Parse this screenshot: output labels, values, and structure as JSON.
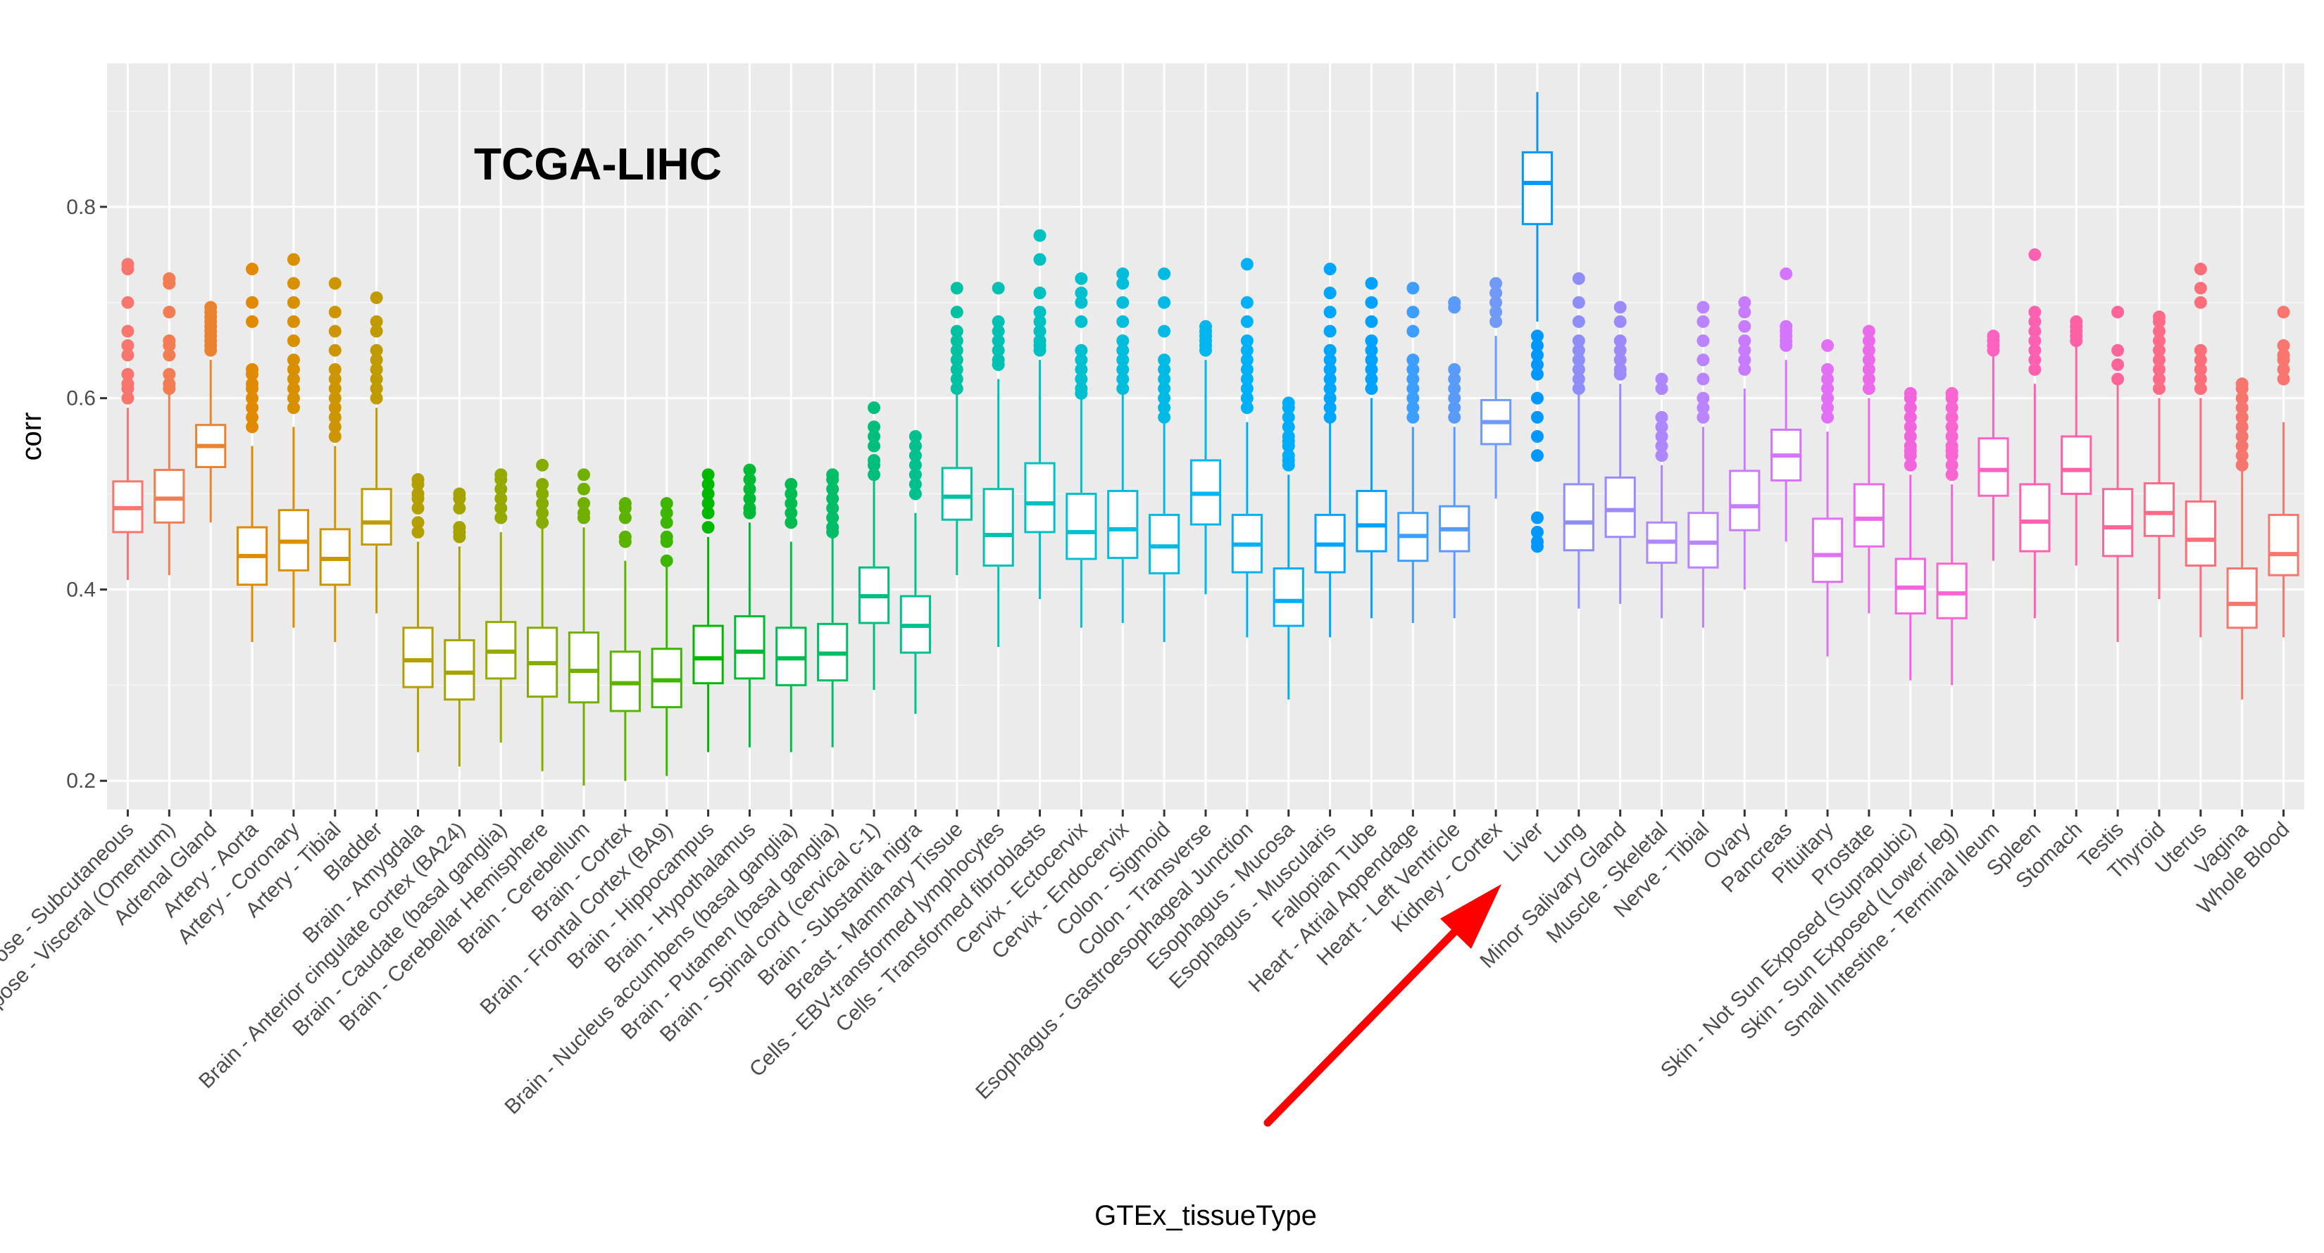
{
  "chart_data": {
    "type": "boxplot",
    "title": "TCGA-LIHC",
    "xlabel": "GTEx_tissueType",
    "ylabel": "corr",
    "ylim": [
      0.17,
      0.95
    ],
    "yticks": [
      0.2,
      0.4,
      0.6,
      0.8
    ],
    "ytick_labels": [
      "0.2",
      "0.4",
      "0.6",
      "0.8"
    ],
    "grid": true,
    "legend": "none",
    "annotation": {
      "type": "arrow",
      "points_to": "Liver",
      "color": "#ff0000"
    },
    "categories": [
      "Adipose - Subcutaneous",
      "Adipose - Visceral (Omentum)",
      "Adrenal Gland",
      "Artery - Aorta",
      "Artery - Coronary",
      "Artery - Tibial",
      "Bladder",
      "Brain - Amygdala",
      "Brain - Anterior cingulate cortex (BA24)",
      "Brain - Caudate (basal ganglia)",
      "Brain - Cerebellar Hemisphere",
      "Brain - Cerebellum",
      "Brain - Cortex",
      "Brain - Frontal Cortex (BA9)",
      "Brain - Hippocampus",
      "Brain - Hypothalamus",
      "Brain - Nucleus accumbens (basal ganglia)",
      "Brain - Putamen (basal ganglia)",
      "Brain - Spinal cord (cervical c-1)",
      "Brain - Substantia nigra",
      "Breast - Mammary Tissue",
      "Cells - EBV-transformed lymphocytes",
      "Cells - Transformed fibroblasts",
      "Cervix - Ectocervix",
      "Cervix - Endocervix",
      "Colon - Sigmoid",
      "Colon - Transverse",
      "Esophagus - Gastroesophageal Junction",
      "Esophagus - Mucosa",
      "Esophagus - Muscularis",
      "Fallopian Tube",
      "Heart - Atrial Appendage",
      "Heart - Left Ventricle",
      "Kidney - Cortex",
      "Liver",
      "Lung",
      "Minor Salivary Gland",
      "Muscle - Skeletal",
      "Nerve - Tibial",
      "Ovary",
      "Pancreas",
      "Pituitary",
      "Prostate",
      "Skin - Not Sun Exposed (Suprapubic)",
      "Skin - Sun Exposed (Lower leg)",
      "Small Intestine - Terminal Ileum",
      "Spleen",
      "Stomach",
      "Testis",
      "Thyroid",
      "Uterus",
      "Vagina",
      "Whole Blood"
    ],
    "colors": [
      "#f8766d",
      "#f27d53",
      "#ea8331",
      "#e18a00",
      "#d89000",
      "#cd9600",
      "#c09b00",
      "#b49f00",
      "#a5a300",
      "#96a900",
      "#86ac00",
      "#72b000",
      "#5bb300",
      "#3cb600",
      "#00b900",
      "#00ba35",
      "#00bc50",
      "#00be67",
      "#00bf7c",
      "#00c08f",
      "#00c1a1",
      "#00c1b2",
      "#00c0c1",
      "#00bfcf",
      "#00bddb",
      "#00bae6",
      "#00b6ef",
      "#00b1f7",
      "#00adfa",
      "#00a5ff",
      "#00a1ff",
      "#3c9ffd",
      "#5a9bf9",
      "#709af6",
      "#0098ff",
      "#8d8ef7",
      "#9e89f9",
      "#ae87ff",
      "#bb83ff",
      "#c77cff",
      "#d575fe",
      "#e170f4",
      "#ea6ae9",
      "#f263de",
      "#f966d1",
      "#fc63c1",
      "#ff61b1",
      "#ff61a4",
      "#ff6596",
      "#ff6b86",
      "#fc6e79",
      "#f6756d",
      "#f8766d"
    ],
    "series": [
      {
        "min": 0.41,
        "q1": 0.46,
        "median": 0.485,
        "q3": 0.513,
        "max": 0.59,
        "outliers": [
          0.74,
          0.735,
          0.7,
          0.67,
          0.655,
          0.645,
          0.625,
          0.615,
          0.61,
          0.6
        ]
      },
      {
        "min": 0.415,
        "q1": 0.47,
        "median": 0.495,
        "q3": 0.525,
        "max": 0.605,
        "outliers": [
          0.725,
          0.72,
          0.69,
          0.66,
          0.655,
          0.645,
          0.625,
          0.615,
          0.61
        ]
      },
      {
        "min": 0.47,
        "q1": 0.528,
        "median": 0.55,
        "q3": 0.572,
        "max": 0.64,
        "outliers": [
          0.695,
          0.69,
          0.685,
          0.68,
          0.675,
          0.67,
          0.665,
          0.66,
          0.655,
          0.65
        ]
      },
      {
        "min": 0.345,
        "q1": 0.405,
        "median": 0.435,
        "q3": 0.465,
        "max": 0.55,
        "outliers": [
          0.735,
          0.7,
          0.68,
          0.63,
          0.625,
          0.615,
          0.61,
          0.6,
          0.59,
          0.58,
          0.57
        ]
      },
      {
        "min": 0.36,
        "q1": 0.42,
        "median": 0.45,
        "q3": 0.483,
        "max": 0.57,
        "outliers": [
          0.745,
          0.72,
          0.7,
          0.68,
          0.66,
          0.64,
          0.63,
          0.62,
          0.61,
          0.6,
          0.59
        ]
      },
      {
        "min": 0.345,
        "q1": 0.405,
        "median": 0.432,
        "q3": 0.463,
        "max": 0.55,
        "outliers": [
          0.72,
          0.69,
          0.67,
          0.65,
          0.63,
          0.62,
          0.61,
          0.6,
          0.59,
          0.58,
          0.57,
          0.56
        ]
      },
      {
        "min": 0.375,
        "q1": 0.447,
        "median": 0.47,
        "q3": 0.505,
        "max": 0.59,
        "outliers": [
          0.705,
          0.68,
          0.67,
          0.65,
          0.64,
          0.63,
          0.62,
          0.61,
          0.6
        ]
      },
      {
        "min": 0.23,
        "q1": 0.298,
        "median": 0.326,
        "q3": 0.36,
        "max": 0.45,
        "outliers": [
          0.515,
          0.51,
          0.5,
          0.495,
          0.485,
          0.47,
          0.46
        ]
      },
      {
        "min": 0.215,
        "q1": 0.285,
        "median": 0.313,
        "q3": 0.347,
        "max": 0.445,
        "outliers": [
          0.5,
          0.495,
          0.485,
          0.465,
          0.46,
          0.455
        ]
      },
      {
        "min": 0.24,
        "q1": 0.307,
        "median": 0.335,
        "q3": 0.366,
        "max": 0.46,
        "outliers": [
          0.52,
          0.515,
          0.505,
          0.495,
          0.485,
          0.475
        ]
      },
      {
        "min": 0.21,
        "q1": 0.288,
        "median": 0.323,
        "q3": 0.36,
        "max": 0.465,
        "outliers": [
          0.53,
          0.51,
          0.5,
          0.49,
          0.48,
          0.47
        ]
      },
      {
        "min": 0.195,
        "q1": 0.282,
        "median": 0.315,
        "q3": 0.355,
        "max": 0.465,
        "outliers": [
          0.52,
          0.505,
          0.49,
          0.48,
          0.475
        ]
      },
      {
        "min": 0.2,
        "q1": 0.273,
        "median": 0.302,
        "q3": 0.335,
        "max": 0.43,
        "outliers": [
          0.49,
          0.485,
          0.475,
          0.455,
          0.45
        ]
      },
      {
        "min": 0.205,
        "q1": 0.277,
        "median": 0.305,
        "q3": 0.338,
        "max": 0.435,
        "outliers": [
          0.49,
          0.48,
          0.47,
          0.455,
          0.45,
          0.43
        ]
      },
      {
        "min": 0.23,
        "q1": 0.302,
        "median": 0.328,
        "q3": 0.362,
        "max": 0.455,
        "outliers": [
          0.52,
          0.51,
          0.5,
          0.49,
          0.48,
          0.465
        ]
      },
      {
        "min": 0.235,
        "q1": 0.307,
        "median": 0.335,
        "q3": 0.372,
        "max": 0.47,
        "outliers": [
          0.525,
          0.515,
          0.505,
          0.495,
          0.485,
          0.48
        ]
      },
      {
        "min": 0.23,
        "q1": 0.3,
        "median": 0.328,
        "q3": 0.36,
        "max": 0.45,
        "outliers": [
          0.51,
          0.5,
          0.49,
          0.48,
          0.47
        ]
      },
      {
        "min": 0.235,
        "q1": 0.305,
        "median": 0.333,
        "q3": 0.364,
        "max": 0.455,
        "outliers": [
          0.52,
          0.515,
          0.505,
          0.495,
          0.485,
          0.475,
          0.465,
          0.46
        ]
      },
      {
        "min": 0.295,
        "q1": 0.365,
        "median": 0.393,
        "q3": 0.423,
        "max": 0.515,
        "outliers": [
          0.59,
          0.57,
          0.56,
          0.55,
          0.535,
          0.53,
          0.52
        ]
      },
      {
        "min": 0.27,
        "q1": 0.334,
        "median": 0.362,
        "q3": 0.393,
        "max": 0.48,
        "outliers": [
          0.56,
          0.55,
          0.54,
          0.53,
          0.52,
          0.51,
          0.5
        ]
      },
      {
        "min": 0.415,
        "q1": 0.473,
        "median": 0.497,
        "q3": 0.527,
        "max": 0.605,
        "outliers": [
          0.715,
          0.69,
          0.67,
          0.66,
          0.65,
          0.64,
          0.63,
          0.62,
          0.61
        ]
      },
      {
        "min": 0.34,
        "q1": 0.425,
        "median": 0.457,
        "q3": 0.505,
        "max": 0.62,
        "outliers": [
          0.715,
          0.68,
          0.67,
          0.66,
          0.65,
          0.64,
          0.635
        ]
      },
      {
        "min": 0.39,
        "q1": 0.46,
        "median": 0.49,
        "q3": 0.532,
        "max": 0.64,
        "outliers": [
          0.77,
          0.745,
          0.71,
          0.69,
          0.68,
          0.67,
          0.66,
          0.655,
          0.65
        ]
      },
      {
        "min": 0.36,
        "q1": 0.432,
        "median": 0.46,
        "q3": 0.5,
        "max": 0.6,
        "outliers": [
          0.725,
          0.71,
          0.7,
          0.68,
          0.65,
          0.64,
          0.63,
          0.62,
          0.61,
          0.605
        ]
      },
      {
        "min": 0.365,
        "q1": 0.433,
        "median": 0.463,
        "q3": 0.503,
        "max": 0.605,
        "outliers": [
          0.73,
          0.72,
          0.7,
          0.68,
          0.66,
          0.65,
          0.64,
          0.63,
          0.62,
          0.61
        ]
      },
      {
        "min": 0.345,
        "q1": 0.417,
        "median": 0.445,
        "q3": 0.478,
        "max": 0.575,
        "outliers": [
          0.73,
          0.7,
          0.67,
          0.64,
          0.63,
          0.62,
          0.61,
          0.6,
          0.59,
          0.58
        ]
      },
      {
        "min": 0.395,
        "q1": 0.468,
        "median": 0.5,
        "q3": 0.535,
        "max": 0.64,
        "outliers": [
          0.675,
          0.67,
          0.665,
          0.66,
          0.655,
          0.65
        ]
      },
      {
        "min": 0.35,
        "q1": 0.418,
        "median": 0.447,
        "q3": 0.478,
        "max": 0.575,
        "outliers": [
          0.74,
          0.7,
          0.68,
          0.66,
          0.65,
          0.64,
          0.63,
          0.62,
          0.61,
          0.6,
          0.59
        ]
      },
      {
        "min": 0.285,
        "q1": 0.362,
        "median": 0.388,
        "q3": 0.422,
        "max": 0.52,
        "outliers": [
          0.595,
          0.59,
          0.58,
          0.57,
          0.56,
          0.555,
          0.55,
          0.54,
          0.535,
          0.53
        ]
      },
      {
        "min": 0.35,
        "q1": 0.418,
        "median": 0.447,
        "q3": 0.478,
        "max": 0.575,
        "outliers": [
          0.735,
          0.71,
          0.69,
          0.67,
          0.65,
          0.64,
          0.63,
          0.62,
          0.61,
          0.6,
          0.59,
          0.58
        ]
      },
      {
        "min": 0.37,
        "q1": 0.44,
        "median": 0.467,
        "q3": 0.503,
        "max": 0.6,
        "outliers": [
          0.72,
          0.7,
          0.68,
          0.66,
          0.65,
          0.64,
          0.63,
          0.62,
          0.61
        ]
      },
      {
        "min": 0.365,
        "q1": 0.43,
        "median": 0.456,
        "q3": 0.48,
        "max": 0.57,
        "outliers": [
          0.715,
          0.69,
          0.67,
          0.64,
          0.63,
          0.62,
          0.61,
          0.6,
          0.59,
          0.58
        ]
      },
      {
        "min": 0.37,
        "q1": 0.44,
        "median": 0.463,
        "q3": 0.487,
        "max": 0.57,
        "outliers": [
          0.7,
          0.695,
          0.63,
          0.62,
          0.61,
          0.6,
          0.59,
          0.58
        ]
      },
      {
        "min": 0.495,
        "q1": 0.552,
        "median": 0.575,
        "q3": 0.598,
        "max": 0.665,
        "outliers": [
          0.72,
          0.71,
          0.7,
          0.69,
          0.68
        ]
      },
      {
        "min": 0.68,
        "q1": 0.782,
        "median": 0.825,
        "q3": 0.857,
        "max": 0.92,
        "outliers": [
          0.665,
          0.655,
          0.645,
          0.635,
          0.625,
          0.6,
          0.58,
          0.56,
          0.54,
          0.475,
          0.46,
          0.45,
          0.445
        ]
      },
      {
        "min": 0.38,
        "q1": 0.441,
        "median": 0.47,
        "q3": 0.51,
        "max": 0.605,
        "outliers": [
          0.725,
          0.7,
          0.68,
          0.66,
          0.65,
          0.64,
          0.63,
          0.62,
          0.61
        ]
      },
      {
        "min": 0.385,
        "q1": 0.455,
        "median": 0.483,
        "q3": 0.517,
        "max": 0.615,
        "outliers": [
          0.695,
          0.68,
          0.66,
          0.65,
          0.64,
          0.63,
          0.625
        ]
      },
      {
        "min": 0.37,
        "q1": 0.428,
        "median": 0.45,
        "q3": 0.47,
        "max": 0.53,
        "outliers": [
          0.62,
          0.61,
          0.58,
          0.57,
          0.56,
          0.55,
          0.54
        ]
      },
      {
        "min": 0.36,
        "q1": 0.423,
        "median": 0.449,
        "q3": 0.48,
        "max": 0.57,
        "outliers": [
          0.695,
          0.68,
          0.66,
          0.64,
          0.62,
          0.6,
          0.59,
          0.58
        ]
      },
      {
        "min": 0.4,
        "q1": 0.462,
        "median": 0.487,
        "q3": 0.524,
        "max": 0.61,
        "outliers": [
          0.7,
          0.69,
          0.675,
          0.66,
          0.65,
          0.64,
          0.63
        ]
      },
      {
        "min": 0.45,
        "q1": 0.514,
        "median": 0.54,
        "q3": 0.567,
        "max": 0.64,
        "outliers": [
          0.73,
          0.675,
          0.67,
          0.665,
          0.66,
          0.655
        ]
      },
      {
        "min": 0.33,
        "q1": 0.408,
        "median": 0.436,
        "q3": 0.474,
        "max": 0.565,
        "outliers": [
          0.655,
          0.63,
          0.62,
          0.61,
          0.6,
          0.59,
          0.58
        ]
      },
      {
        "min": 0.375,
        "q1": 0.445,
        "median": 0.474,
        "q3": 0.51,
        "max": 0.6,
        "outliers": [
          0.67,
          0.66,
          0.65,
          0.64,
          0.63,
          0.62,
          0.61
        ]
      },
      {
        "min": 0.305,
        "q1": 0.375,
        "median": 0.402,
        "q3": 0.432,
        "max": 0.52,
        "outliers": [
          0.605,
          0.6,
          0.59,
          0.58,
          0.57,
          0.56,
          0.55,
          0.545,
          0.54,
          0.53
        ]
      },
      {
        "min": 0.3,
        "q1": 0.37,
        "median": 0.396,
        "q3": 0.427,
        "max": 0.51,
        "outliers": [
          0.605,
          0.6,
          0.59,
          0.58,
          0.57,
          0.56,
          0.55,
          0.545,
          0.54,
          0.53,
          0.52
        ]
      },
      {
        "min": 0.43,
        "q1": 0.498,
        "median": 0.525,
        "q3": 0.558,
        "max": 0.645,
        "outliers": [
          0.665,
          0.66,
          0.655,
          0.65
        ]
      },
      {
        "min": 0.37,
        "q1": 0.44,
        "median": 0.471,
        "q3": 0.51,
        "max": 0.615,
        "outliers": [
          0.75,
          0.69,
          0.68,
          0.67,
          0.66,
          0.65,
          0.64,
          0.63
        ]
      },
      {
        "min": 0.425,
        "q1": 0.5,
        "median": 0.525,
        "q3": 0.56,
        "max": 0.655,
        "outliers": [
          0.68,
          0.675,
          0.67,
          0.665,
          0.66
        ]
      },
      {
        "min": 0.345,
        "q1": 0.435,
        "median": 0.465,
        "q3": 0.505,
        "max": 0.615,
        "outliers": [
          0.69,
          0.65,
          0.635,
          0.62
        ]
      },
      {
        "min": 0.39,
        "q1": 0.456,
        "median": 0.48,
        "q3": 0.511,
        "max": 0.6,
        "outliers": [
          0.685,
          0.68,
          0.67,
          0.66,
          0.65,
          0.64,
          0.63,
          0.62,
          0.61
        ]
      },
      {
        "min": 0.35,
        "q1": 0.425,
        "median": 0.452,
        "q3": 0.492,
        "max": 0.6,
        "outliers": [
          0.735,
          0.715,
          0.7,
          0.65,
          0.64,
          0.63,
          0.62,
          0.61
        ]
      },
      {
        "min": 0.285,
        "q1": 0.36,
        "median": 0.385,
        "q3": 0.422,
        "max": 0.525,
        "outliers": [
          0.615,
          0.61,
          0.6,
          0.59,
          0.58,
          0.57,
          0.56,
          0.55,
          0.54,
          0.53
        ]
      },
      {
        "min": 0.35,
        "q1": 0.415,
        "median": 0.437,
        "q3": 0.478,
        "max": 0.575,
        "outliers": [
          0.69,
          0.655,
          0.645,
          0.64,
          0.63,
          0.62
        ]
      }
    ]
  }
}
